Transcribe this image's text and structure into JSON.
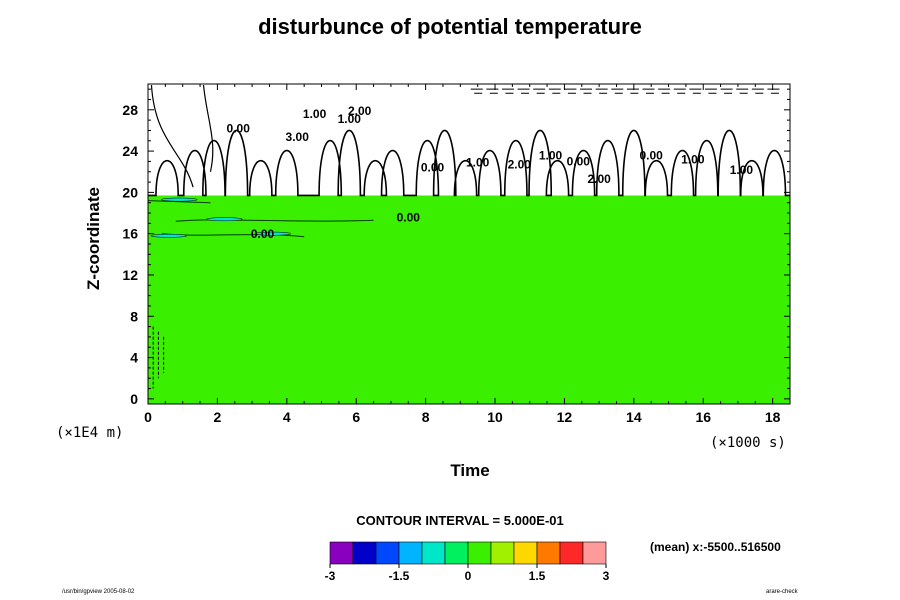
{
  "chart_data": {
    "type": "heatmap",
    "title": "disturbunce of potential temperature",
    "xlabel": "Time",
    "ylabel": "Z-coordinate",
    "x_unit": "(×1000 s)",
    "y_unit": "(×1E4 m)",
    "xlim": [
      0,
      18.5
    ],
    "ylim": [
      -0.5,
      30.5
    ],
    "x_ticks": [
      0,
      2,
      4,
      6,
      8,
      10,
      12,
      14,
      16,
      18
    ],
    "y_ticks": [
      0,
      4,
      8,
      12,
      16,
      20,
      24,
      28
    ],
    "x_tick_labels": [
      "0",
      "2",
      "4",
      "6",
      "8",
      "10",
      "12",
      "14",
      "16",
      "18"
    ],
    "y_tick_labels": [
      "0",
      "4",
      "8",
      "12",
      "16",
      "20",
      "24",
      "28"
    ],
    "field_value_below_20": 0,
    "boundary_z": 19.7,
    "contour_labels": [
      {
        "text": "0.00",
        "x": 7.5,
        "y": 17.2
      },
      {
        "text": "0.00",
        "x": 3.3,
        "y": 15.6
      },
      {
        "text": "0.00",
        "x": 2.6,
        "y": 25.8
      },
      {
        "text": "3.00",
        "x": 4.3,
        "y": 25.0
      },
      {
        "text": "1.00",
        "x": 4.8,
        "y": 27.2
      },
      {
        "text": "1.00",
        "x": 5.8,
        "y": 26.7
      },
      {
        "text": "2.00",
        "x": 6.1,
        "y": 27.5
      },
      {
        "text": "0.00",
        "x": 8.2,
        "y": 22.0
      },
      {
        "text": "1.00",
        "x": 9.5,
        "y": 22.5
      },
      {
        "text": "2.00",
        "x": 10.7,
        "y": 22.3
      },
      {
        "text": "1.00",
        "x": 11.6,
        "y": 23.2
      },
      {
        "text": "0.00",
        "x": 12.4,
        "y": 22.6
      },
      {
        "text": "2.00",
        "x": 13.0,
        "y": 20.9
      },
      {
        "text": "0.00",
        "x": 14.5,
        "y": 23.2
      },
      {
        "text": "1.00",
        "x": 15.7,
        "y": 22.8
      },
      {
        "text": "1.00",
        "x": 17.1,
        "y": 21.8
      }
    ],
    "colorbar": {
      "levels": [
        -3,
        -2.5,
        -2,
        -1.5,
        -1,
        -0.5,
        0,
        0.5,
        1,
        1.5,
        2,
        2.5,
        3
      ],
      "tick_labels": [
        "-3",
        "-1.5",
        "0",
        "1.5",
        "3"
      ],
      "tick_values": [
        -3,
        -1.5,
        0,
        1.5,
        3
      ],
      "colors": [
        "#8a00bf",
        "#0000c8",
        "#0048ff",
        "#00b4ff",
        "#00e6c8",
        "#00f060",
        "#3af000",
        "#a0f000",
        "#ffd800",
        "#ff7800",
        "#ff2828",
        "#ff9a9a"
      ]
    },
    "contour_interval_text": "CONTOUR INTERVAL = 5.000E-01",
    "mean_text": "(mean) x:-5500..516500"
  },
  "footer": {
    "left": "/usr/bin/gpview 2005-08-02",
    "right": "arare-check"
  }
}
